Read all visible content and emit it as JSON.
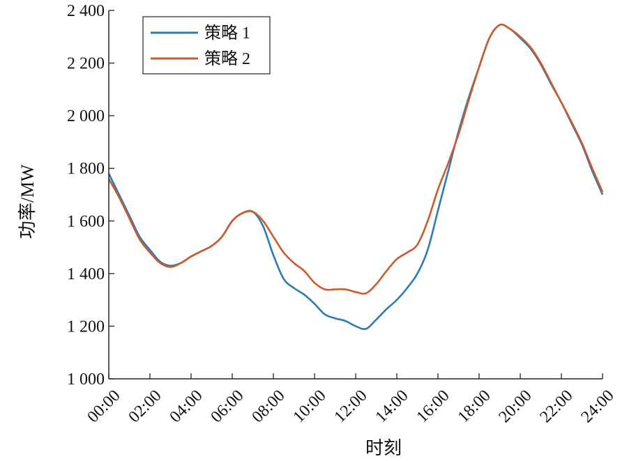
{
  "chart_data": {
    "type": "line",
    "title": "",
    "xlabel": "时刻",
    "ylabel": "功率/MW",
    "xlim": [
      0,
      24
    ],
    "ylim": [
      1000,
      2400
    ],
    "x_ticks": [
      0,
      2,
      4,
      6,
      8,
      10,
      12,
      14,
      16,
      18,
      20,
      22,
      24
    ],
    "x_tick_labels": [
      "00:00",
      "02:00",
      "04:00",
      "06:00",
      "08:00",
      "10:00",
      "12:00",
      "14:00",
      "16:00",
      "18:00",
      "20:00",
      "22:00",
      "24:00"
    ],
    "y_ticks": [
      1000,
      1200,
      1400,
      1600,
      1800,
      2000,
      2200,
      2400
    ],
    "y_tick_labels": [
      "1 000",
      "1 200",
      "1 400",
      "1 600",
      "1 800",
      "2 000",
      "2 200",
      "2 400"
    ],
    "grid": false,
    "legend_position": "top-left",
    "x": [
      0,
      0.5,
      1,
      1.5,
      2,
      2.5,
      3,
      3.5,
      4,
      4.5,
      5,
      5.5,
      6,
      6.5,
      7,
      7.5,
      8,
      8.5,
      9,
      9.5,
      10,
      10.5,
      11,
      11.5,
      12,
      12.5,
      13,
      13.5,
      14,
      14.5,
      15,
      15.5,
      16,
      16.5,
      17,
      17.5,
      18,
      18.5,
      19,
      19.5,
      20,
      20.5,
      21,
      21.5,
      22,
      22.5,
      23,
      23.5,
      24
    ],
    "series": [
      {
        "name": "策略 1",
        "color": "#2b7bba",
        "values": [
          1780,
          1700,
          1620,
          1540,
          1490,
          1445,
          1430,
          1440,
          1465,
          1485,
          1505,
          1540,
          1600,
          1630,
          1635,
          1580,
          1470,
          1380,
          1345,
          1320,
          1285,
          1245,
          1230,
          1220,
          1200,
          1190,
          1225,
          1265,
          1300,
          1345,
          1400,
          1490,
          1640,
          1790,
          1940,
          2070,
          2185,
          2295,
          2345,
          2330,
          2295,
          2255,
          2195,
          2120,
          2050,
          1970,
          1890,
          1790,
          1700
        ]
      },
      {
        "name": "策略 2",
        "color": "#cc5a2a",
        "values": [
          1760,
          1690,
          1610,
          1530,
          1480,
          1440,
          1425,
          1440,
          1465,
          1485,
          1505,
          1540,
          1600,
          1630,
          1635,
          1600,
          1540,
          1480,
          1440,
          1410,
          1365,
          1340,
          1340,
          1340,
          1330,
          1325,
          1360,
          1410,
          1455,
          1480,
          1510,
          1600,
          1720,
          1820,
          1930,
          2060,
          2185,
          2295,
          2345,
          2330,
          2300,
          2260,
          2200,
          2125,
          2050,
          1975,
          1895,
          1800,
          1710
        ]
      }
    ]
  }
}
